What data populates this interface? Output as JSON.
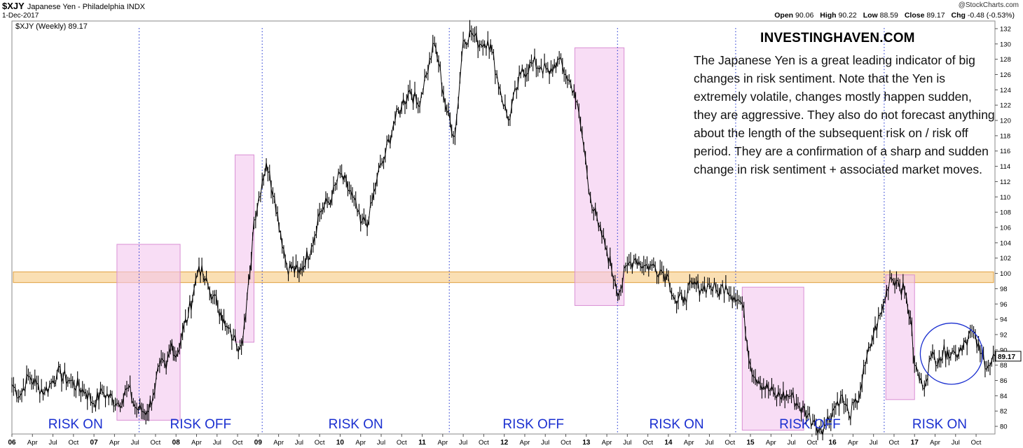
{
  "header": {
    "symbol": "$XJY",
    "exchange": "Japanese Yen - Philadelphia  INDX",
    "date": "1-Dec-2017",
    "copyright": "@StockCharts.com",
    "open_label": "Open",
    "open": "90.06",
    "high_label": "High",
    "high": "90.22",
    "low_label": "Low",
    "low": "88.59",
    "close_label": "Close",
    "close": "89.17",
    "chg_label": "Chg",
    "chg": "-0.48 (-0.53%)",
    "legend": "$XJY (Weekly) 89.17",
    "last_value": "89.17"
  },
  "annotation": {
    "site": "INVESTINGHAVEN.COM",
    "text": "The Japanese Yen is a great leading indicator of big changes in risk sentiment. Note that the Yen is extremely volatile, changes mostly happen sudden, they are aggressive. They also do not forecast anything about the length of the subsequent risk on / risk off period. They are a confirmation of a sharp and sudden change in risk sentiment + associated market moves."
  },
  "colors": {
    "price": "#000000",
    "risk_label": "#1a2fd0",
    "zone_fill": "#f3c6ef",
    "zone_stroke": "#d98fd4",
    "band_fill": "#f8d49a",
    "band_stroke": "#e0a040",
    "divider": "#1a2fd0",
    "circle": "#1a2fd0"
  },
  "chart_data": {
    "type": "line",
    "title": "$XJY (Weekly)",
    "ylim": [
      79,
      133
    ],
    "xlim": [
      2006.0,
      2017.98
    ],
    "y_ticks": [
      "80",
      "82",
      "84",
      "86",
      "88",
      "90",
      "92",
      "94",
      "96",
      "98",
      "100",
      "102",
      "104",
      "106",
      "108",
      "110",
      "112",
      "114",
      "116",
      "118",
      "120",
      "122",
      "124",
      "126",
      "128",
      "130",
      "132"
    ],
    "x_ticks": [
      {
        "label": "06",
        "x": 2006.0
      },
      {
        "label": "Apr",
        "x": 2006.25
      },
      {
        "label": "Jul",
        "x": 2006.5
      },
      {
        "label": "Oct",
        "x": 2006.75
      },
      {
        "label": "07",
        "x": 2007.0
      },
      {
        "label": "Apr",
        "x": 2007.25
      },
      {
        "label": "Jul",
        "x": 2007.5
      },
      {
        "label": "Oct",
        "x": 2007.75
      },
      {
        "label": "08",
        "x": 2008.0
      },
      {
        "label": "Apr",
        "x": 2008.25
      },
      {
        "label": "Jul",
        "x": 2008.5
      },
      {
        "label": "Oct",
        "x": 2008.75
      },
      {
        "label": "09",
        "x": 2009.0
      },
      {
        "label": "Apr",
        "x": 2009.25
      },
      {
        "label": "Jul",
        "x": 2009.5
      },
      {
        "label": "Oct",
        "x": 2009.75
      },
      {
        "label": "10",
        "x": 2010.0
      },
      {
        "label": "Apr",
        "x": 2010.25
      },
      {
        "label": "Jul",
        "x": 2010.5
      },
      {
        "label": "Oct",
        "x": 2010.75
      },
      {
        "label": "11",
        "x": 2011.0
      },
      {
        "label": "Apr",
        "x": 2011.25
      },
      {
        "label": "Jul",
        "x": 2011.5
      },
      {
        "label": "Oct",
        "x": 2011.75
      },
      {
        "label": "12",
        "x": 2012.0
      },
      {
        "label": "Apr",
        "x": 2012.25
      },
      {
        "label": "Jul",
        "x": 2012.5
      },
      {
        "label": "Oct",
        "x": 2012.75
      },
      {
        "label": "13",
        "x": 2013.0
      },
      {
        "label": "Apr",
        "x": 2013.25
      },
      {
        "label": "Jul",
        "x": 2013.5
      },
      {
        "label": "Oct",
        "x": 2013.75
      },
      {
        "label": "14",
        "x": 2014.0
      },
      {
        "label": "Apr",
        "x": 2014.25
      },
      {
        "label": "Jul",
        "x": 2014.5
      },
      {
        "label": "Oct",
        "x": 2014.75
      },
      {
        "label": "15",
        "x": 2015.0
      },
      {
        "label": "Apr",
        "x": 2015.25
      },
      {
        "label": "Jul",
        "x": 2015.5
      },
      {
        "label": "Oct",
        "x": 2015.75
      },
      {
        "label": "16",
        "x": 2016.0
      },
      {
        "label": "Apr",
        "x": 2016.25
      },
      {
        "label": "Jul",
        "x": 2016.5
      },
      {
        "label": "Oct",
        "x": 2016.75
      },
      {
        "label": "17",
        "x": 2017.0
      },
      {
        "label": "Apr",
        "x": 2017.25
      },
      {
        "label": "Jul",
        "x": 2017.5
      },
      {
        "label": "Oct",
        "x": 2017.75
      }
    ],
    "series": [
      {
        "name": "$XJY (Weekly)",
        "x": [
          2006.0,
          2006.1,
          2006.2,
          2006.3,
          2006.4,
          2006.5,
          2006.55,
          2006.7,
          2006.9,
          2007.0,
          2007.1,
          2007.3,
          2007.42,
          2007.5,
          2007.58,
          2007.65,
          2007.72,
          2007.8,
          2007.88,
          2007.95,
          2008.0,
          2008.08,
          2008.15,
          2008.22,
          2008.28,
          2008.35,
          2008.45,
          2008.55,
          2008.6,
          2008.7,
          2008.78,
          2008.85,
          2008.9,
          2008.95,
          2009.05,
          2009.1,
          2009.2,
          2009.35,
          2009.5,
          2009.65,
          2009.75,
          2009.9,
          2010.0,
          2010.15,
          2010.25,
          2010.35,
          2010.45,
          2010.55,
          2010.65,
          2010.75,
          2010.85,
          2010.95,
          2011.05,
          2011.15,
          2011.2,
          2011.3,
          2011.4,
          2011.5,
          2011.6,
          2011.7,
          2011.8,
          2011.85,
          2011.95,
          2012.05,
          2012.15,
          2012.2,
          2012.35,
          2012.45,
          2012.55,
          2012.65,
          2012.75,
          2012.85,
          2012.95,
          2013.05,
          2013.15,
          2013.25,
          2013.35,
          2013.4,
          2013.5,
          2013.6,
          2013.7,
          2013.8,
          2013.9,
          2014.0,
          2014.1,
          2014.2,
          2014.3,
          2014.4,
          2014.5,
          2014.6,
          2014.7,
          2014.8,
          2014.9,
          2015.0,
          2015.1,
          2015.3,
          2015.5,
          2015.6,
          2015.7,
          2015.8,
          2015.9,
          2016.0,
          2016.1,
          2016.2,
          2016.3,
          2016.4,
          2016.5,
          2016.6,
          2016.7,
          2016.8,
          2016.9,
          2016.95,
          2017.0,
          2017.1,
          2017.2,
          2017.3,
          2017.4,
          2017.5,
          2017.6,
          2017.7,
          2017.8,
          2017.9,
          2017.98
        ],
        "values": [
          85.5,
          84,
          86.5,
          85.5,
          84.5,
          86,
          87,
          86,
          84.5,
          83,
          84.5,
          83,
          85,
          82.5,
          82,
          82,
          84,
          88,
          87.5,
          91,
          89,
          92.5,
          94.5,
          98,
          101,
          99,
          97,
          95,
          93,
          91.5,
          90.5,
          94.5,
          100,
          107,
          112,
          114.5,
          110,
          101,
          100,
          103.5,
          108,
          110,
          113,
          110,
          106.5,
          107,
          112.5,
          115.5,
          119.5,
          122,
          124,
          122,
          126,
          130,
          127.5,
          121,
          118,
          130.5,
          131.5,
          130,
          130.5,
          129,
          124,
          120,
          124,
          126,
          127.5,
          127,
          126,
          128,
          126,
          124,
          118,
          110,
          106,
          103,
          99,
          97.5,
          101,
          102,
          101,
          101,
          100.5,
          99.5,
          96,
          97,
          98.5,
          98,
          98.5,
          97.5,
          98.5,
          97,
          96,
          88,
          86,
          84,
          84,
          82.5,
          81.5,
          80,
          80,
          82,
          84,
          81.5,
          83,
          88,
          92,
          95,
          99.5,
          99,
          97,
          94,
          88,
          85,
          89,
          89,
          90,
          89.5,
          91,
          92.5,
          89.5,
          88,
          89.17
        ]
      }
    ],
    "zones": [
      {
        "label": "RISK ON",
        "x": [
          2006.0,
          2007.55
        ]
      },
      {
        "label": "RISK OFF",
        "x": [
          2007.55,
          2009.05
        ]
      },
      {
        "label": "RISK ON",
        "x": [
          2009.05,
          2011.33
        ]
      },
      {
        "label": "RISK OFF",
        "x": [
          2011.33,
          2013.38
        ]
      },
      {
        "label": "RISK ON",
        "x": [
          2013.38,
          2014.82
        ]
      },
      {
        "label": "RISK OFF",
        "x": [
          2014.82,
          2016.63
        ]
      },
      {
        "label": "RISK ON",
        "x": [
          2016.63,
          2017.98
        ]
      }
    ],
    "highlight_boxes": [
      {
        "x": [
          2007.28,
          2008.05
        ],
        "y": [
          80.8,
          103.8
        ]
      },
      {
        "x": [
          2008.72,
          2008.95
        ],
        "y": [
          91,
          115.5
        ]
      },
      {
        "x": [
          2012.86,
          2013.46
        ],
        "y": [
          95.8,
          129.5
        ]
      },
      {
        "x": [
          2014.9,
          2015.65
        ],
        "y": [
          79.5,
          98.2
        ]
      },
      {
        "x": [
          2016.65,
          2017.0
        ],
        "y": [
          83.5,
          99.8
        ]
      }
    ],
    "resistance_band": {
      "y": [
        98.8,
        100.2
      ]
    },
    "ellipse": {
      "center": [
        2017.45,
        89.5
      ],
      "radius_x": 0.38,
      "radius_y": 4.0
    }
  }
}
